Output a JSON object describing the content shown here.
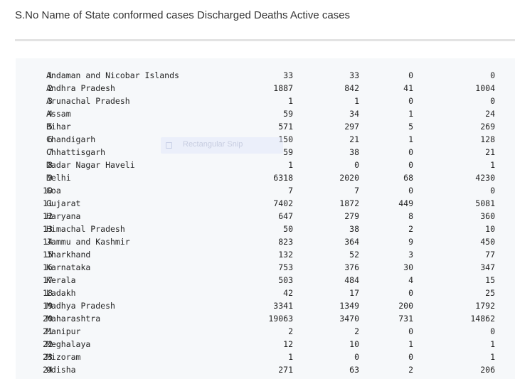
{
  "heading": "S.No Name of State conformed cases Discharged Deaths Active cases",
  "rows": [
    {
      "n": "1",
      "name": "Andaman and Nicobar Islands",
      "conf": "33",
      "dis": "33",
      "dea": "0",
      "act": "0"
    },
    {
      "n": "2",
      "name": "Andhra Pradesh",
      "conf": "1887",
      "dis": "842",
      "dea": "41",
      "act": "1004"
    },
    {
      "n": "3",
      "name": "Arunachal Pradesh",
      "conf": "1",
      "dis": "1",
      "dea": "0",
      "act": "0"
    },
    {
      "n": "4",
      "name": "Assam",
      "conf": "59",
      "dis": "34",
      "dea": "1",
      "act": "24"
    },
    {
      "n": "5",
      "name": "Bihar",
      "conf": "571",
      "dis": "297",
      "dea": "5",
      "act": "269"
    },
    {
      "n": "6",
      "name": "Chandigarh",
      "conf": "150",
      "dis": "21",
      "dea": "1",
      "act": "128"
    },
    {
      "n": "7",
      "name": "Chhattisgarh",
      "conf": "59",
      "dis": "38",
      "dea": "0",
      "act": "21"
    },
    {
      "n": "8",
      "name": "Dadar Nagar Haveli",
      "conf": "1",
      "dis": "0",
      "dea": "0",
      "act": "1"
    },
    {
      "n": "9",
      "name": "Delhi",
      "conf": "6318",
      "dis": "2020",
      "dea": "68",
      "act": "4230"
    },
    {
      "n": "10",
      "name": "Goa",
      "conf": "7",
      "dis": "7",
      "dea": "0",
      "act": "0"
    },
    {
      "n": "11",
      "name": "Gujarat",
      "conf": "7402",
      "dis": "1872",
      "dea": "449",
      "act": "5081"
    },
    {
      "n": "12",
      "name": "Haryana",
      "conf": "647",
      "dis": "279",
      "dea": "8",
      "act": "360"
    },
    {
      "n": "13",
      "name": "Himachal Pradesh",
      "conf": "50",
      "dis": "38",
      "dea": "2",
      "act": "10"
    },
    {
      "n": "14",
      "name": "Jammu and Kashmir",
      "conf": "823",
      "dis": "364",
      "dea": "9",
      "act": "450"
    },
    {
      "n": "15",
      "name": "Jharkhand",
      "conf": "132",
      "dis": "52",
      "dea": "3",
      "act": "77"
    },
    {
      "n": "16",
      "name": "Karnataka",
      "conf": "753",
      "dis": "376",
      "dea": "30",
      "act": "347"
    },
    {
      "n": "17",
      "name": "Kerala",
      "conf": "503",
      "dis": "484",
      "dea": "4",
      "act": "15"
    },
    {
      "n": "18",
      "name": "Ladakh",
      "conf": "42",
      "dis": "17",
      "dea": "0",
      "act": "25"
    },
    {
      "n": "19",
      "name": "Madhya Pradesh",
      "conf": "3341",
      "dis": "1349",
      "dea": "200",
      "act": "1792"
    },
    {
      "n": "20",
      "name": "Maharashtra",
      "conf": "19063",
      "dis": "3470",
      "dea": "731",
      "act": "14862"
    },
    {
      "n": "21",
      "name": "Manipur",
      "conf": "2",
      "dis": "2",
      "dea": "0",
      "act": "0"
    },
    {
      "n": "22",
      "name": "Meghalaya",
      "conf": "12",
      "dis": "10",
      "dea": "1",
      "act": "1"
    },
    {
      "n": "23",
      "name": "Mizoram",
      "conf": "1",
      "dis": "0",
      "dea": "0",
      "act": "1"
    },
    {
      "n": "24",
      "name": "Odisha",
      "conf": "271",
      "dis": "63",
      "dea": "2",
      "act": "206"
    }
  ],
  "snip_overlay": {
    "label": "Rectangular Snip",
    "icon": "rectangle-snip-icon"
  }
}
